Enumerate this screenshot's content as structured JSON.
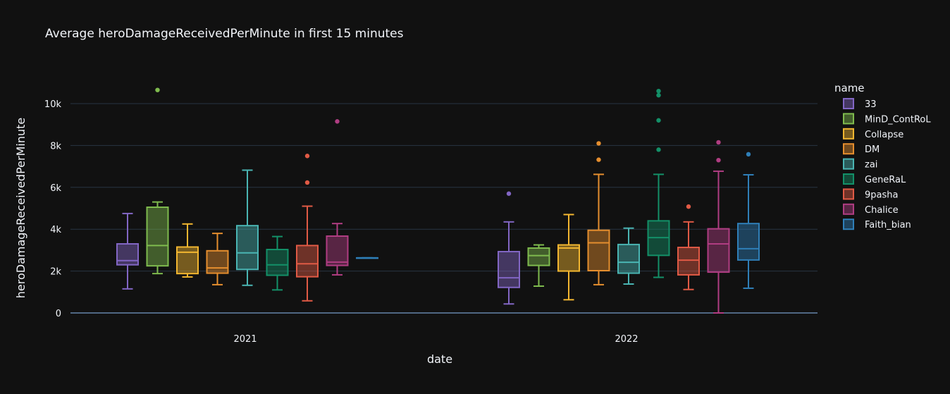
{
  "chart_data": {
    "type": "box",
    "title": "Average heroDamageReceivedPerMinute in first 15 minutes",
    "xlabel": "date",
    "ylabel": "heroDamageReceivedPerMinute",
    "categories": [
      "2021",
      "2022"
    ],
    "ylim": [
      -600,
      11300
    ],
    "yticks": [
      0,
      2000,
      4000,
      6000,
      8000,
      10000
    ],
    "ytick_labels": [
      "0",
      "2k",
      "4k",
      "6k",
      "8k",
      "10k"
    ],
    "grid": true,
    "legend_title": "name",
    "legend_position": "right",
    "series": [
      {
        "name": "33",
        "color": "#8266c4",
        "boxes": [
          {
            "category": "2021",
            "min": 1150,
            "q1": 2300,
            "median": 2500,
            "q3": 3300,
            "max": 4750,
            "outliers": []
          },
          {
            "category": "2022",
            "min": 430,
            "q1": 1220,
            "median": 1680,
            "q3": 2930,
            "max": 4350,
            "outliers": [
              5700
            ]
          }
        ]
      },
      {
        "name": "MinD_ContRoL",
        "color": "#7fbb4e",
        "boxes": [
          {
            "category": "2021",
            "min": 1880,
            "q1": 2250,
            "median": 3220,
            "q3": 5050,
            "max": 5300,
            "outliers": [
              10650
            ]
          },
          {
            "category": "2022",
            "min": 1280,
            "q1": 2270,
            "median": 2740,
            "q3": 3100,
            "max": 3250,
            "outliers": []
          }
        ]
      },
      {
        "name": "Collapse",
        "color": "#f2b630",
        "boxes": [
          {
            "category": "2021",
            "min": 1720,
            "q1": 1880,
            "median": 2900,
            "q3": 3150,
            "max": 4250,
            "outliers": []
          },
          {
            "category": "2022",
            "min": 630,
            "q1": 2000,
            "median": 3100,
            "q3": 3250,
            "max": 4700,
            "outliers": []
          }
        ]
      },
      {
        "name": "DM",
        "color": "#e58e2e",
        "boxes": [
          {
            "category": "2021",
            "min": 1350,
            "q1": 1900,
            "median": 2150,
            "q3": 2970,
            "max": 3800,
            "outliers": []
          },
          {
            "category": "2022",
            "min": 1350,
            "q1": 2020,
            "median": 3350,
            "q3": 3950,
            "max": 6620,
            "outliers": [
              7320,
              8100
            ]
          }
        ]
      },
      {
        "name": "zai",
        "color": "#4ab5b3",
        "boxes": [
          {
            "category": "2021",
            "min": 1320,
            "q1": 2080,
            "median": 2870,
            "q3": 4170,
            "max": 6820,
            "outliers": []
          },
          {
            "category": "2022",
            "min": 1380,
            "q1": 1900,
            "median": 2420,
            "q3": 3270,
            "max": 4050,
            "outliers": []
          }
        ]
      },
      {
        "name": "GeneRaL",
        "color": "#139068",
        "boxes": [
          {
            "category": "2021",
            "min": 1100,
            "q1": 1800,
            "median": 2300,
            "q3": 3030,
            "max": 3650,
            "outliers": []
          },
          {
            "category": "2022",
            "min": 1700,
            "q1": 2750,
            "median": 3600,
            "q3": 4400,
            "max": 6620,
            "outliers": [
              7800,
              9200,
              10400,
              10600
            ]
          }
        ]
      },
      {
        "name": "9pasha",
        "color": "#e05a45",
        "boxes": [
          {
            "category": "2021",
            "min": 580,
            "q1": 1730,
            "median": 2350,
            "q3": 3220,
            "max": 5100,
            "outliers": [
              6230,
              7500
            ]
          },
          {
            "category": "2022",
            "min": 1120,
            "q1": 1820,
            "median": 2520,
            "q3": 3130,
            "max": 4350,
            "outliers": [
              5080
            ]
          }
        ]
      },
      {
        "name": "Chalice",
        "color": "#b03d82",
        "boxes": [
          {
            "category": "2021",
            "min": 1820,
            "q1": 2270,
            "median": 2430,
            "q3": 3670,
            "max": 4270,
            "outliers": [
              9150
            ]
          },
          {
            "category": "2022",
            "min": 0,
            "q1": 1950,
            "median": 3300,
            "q3": 4020,
            "max": 6770,
            "outliers": [
              7300,
              8150
            ]
          }
        ]
      },
      {
        "name": "Faith_bian",
        "color": "#2f7fb8",
        "boxes": [
          {
            "category": "2021",
            "min": 2630,
            "q1": 2630,
            "median": 2630,
            "q3": 2630,
            "max": 2630,
            "outliers": []
          },
          {
            "category": "2022",
            "min": 1180,
            "q1": 2530,
            "median": 3070,
            "q3": 4270,
            "max": 6600,
            "outliers": [
              7580
            ]
          }
        ]
      }
    ]
  }
}
